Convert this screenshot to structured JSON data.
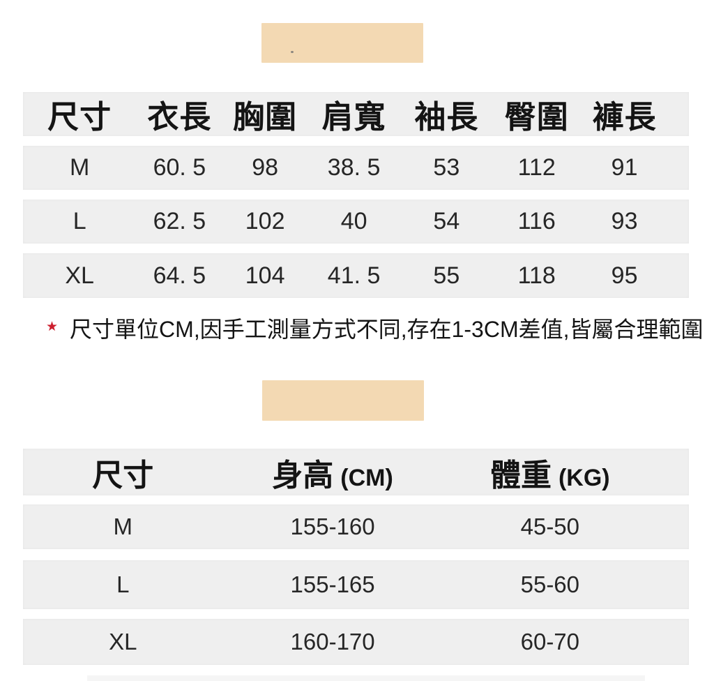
{
  "colors": {
    "swatch": "#f3d9b3",
    "row_background": "#efefef",
    "accent_red": "#cc1f2e",
    "text": "#1c1c1c"
  },
  "swatches": {
    "top_swatch": "fabric color block",
    "middle_swatch": "fabric color block"
  },
  "table1": {
    "headers": [
      "尺寸",
      "衣長",
      "胸圍",
      "肩寬",
      "袖長",
      "臀圍",
      "褲長"
    ],
    "rows": [
      {
        "size": "M",
        "values": [
          "60. 5",
          "98",
          "38. 5",
          "53",
          "112",
          "91"
        ]
      },
      {
        "size": "L",
        "values": [
          "62. 5",
          "102",
          "40",
          "54",
          "116",
          "93"
        ]
      },
      {
        "size": "XL",
        "values": [
          "64. 5",
          "104",
          "41. 5",
          "55",
          "118",
          "95"
        ]
      }
    ]
  },
  "note": {
    "star": "★",
    "text": "尺寸單位CM,因手工測量方式不同,存在1-3CM差值,皆屬合理範圍"
  },
  "table2": {
    "headers": [
      {
        "label": "尺寸",
        "unit": ""
      },
      {
        "label": "身高",
        "unit": "(CM)"
      },
      {
        "label": "體重",
        "unit": "(KG)"
      }
    ],
    "rows": [
      {
        "size": "M",
        "height": "155-160",
        "weight": "45-50"
      },
      {
        "size": "L",
        "height": "155-165",
        "weight": "55-60"
      },
      {
        "size": "XL",
        "height": "160-170",
        "weight": "60-70"
      }
    ]
  }
}
